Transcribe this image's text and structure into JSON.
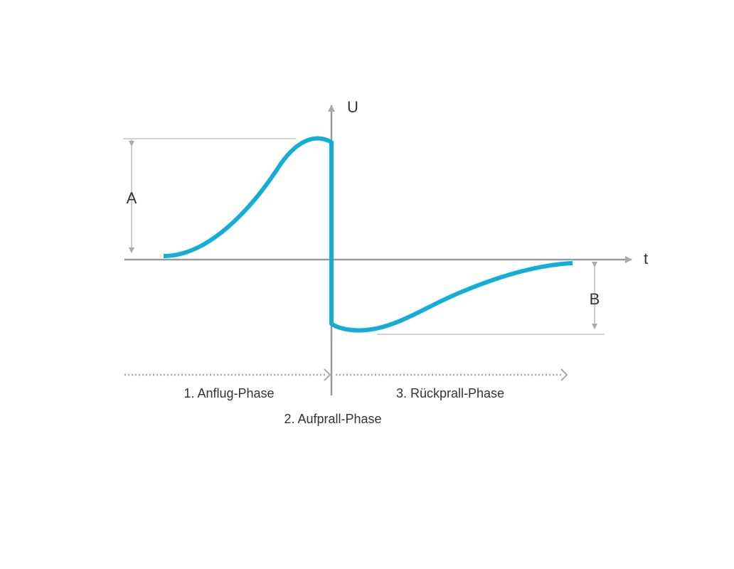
{
  "axes": {
    "y_label": "U",
    "x_label": "t"
  },
  "dimensions": {
    "a": "A",
    "b": "B"
  },
  "phases": [
    "1. Anflug-Phase",
    "2. Aufprall-Phase",
    "3. Rückprall-Phase"
  ]
}
